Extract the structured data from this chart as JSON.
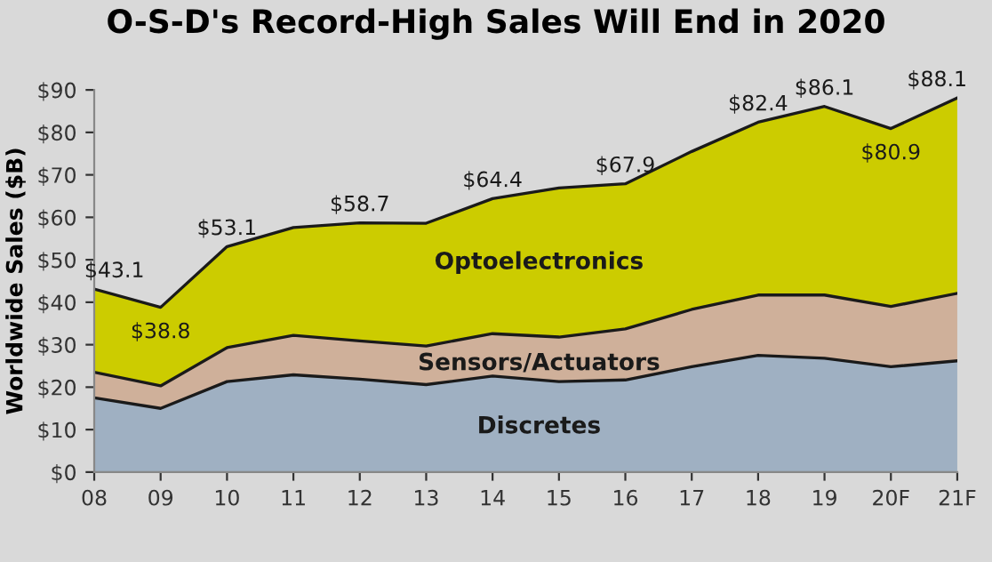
{
  "chart_data": {
    "type": "area",
    "stacked": true,
    "title": "O-S-D's Record-High Sales Will End in 2020",
    "ylabel": "Worldwide Sales ($B)",
    "categories": [
      "08",
      "09",
      "10",
      "11",
      "12",
      "13",
      "14",
      "15",
      "16",
      "17",
      "18",
      "19",
      "20F",
      "21F"
    ],
    "series": [
      {
        "name": "Discretes",
        "color": "#9fb0c2",
        "values": [
          17.5,
          15.0,
          21.3,
          22.9,
          21.9,
          20.6,
          22.6,
          21.3,
          21.7,
          24.8,
          27.5,
          26.8,
          24.8,
          26.2
        ]
      },
      {
        "name": "Sensors/Actuators",
        "color": "#cfb09a",
        "values": [
          6.0,
          5.3,
          8.0,
          9.3,
          9.0,
          9.1,
          10.0,
          10.5,
          12.0,
          13.5,
          14.2,
          14.9,
          14.2,
          15.9
        ]
      },
      {
        "name": "Optoelectronics",
        "color": "#cccc00",
        "values": [
          19.6,
          18.5,
          23.8,
          25.4,
          27.8,
          28.9,
          31.8,
          35.1,
          34.2,
          37.2,
          40.7,
          44.4,
          41.9,
          46.0
        ]
      }
    ],
    "totals": [
      "$43.1",
      "$38.8",
      "$53.1",
      null,
      "$58.7",
      null,
      "$64.4",
      null,
      "$67.9",
      null,
      "$82.4",
      "$86.1",
      "$80.9",
      "$88.1"
    ],
    "ylim": [
      0,
      90
    ],
    "yticks": [
      {
        "value": 0,
        "label": "$0"
      },
      {
        "value": 10,
        "label": "$10"
      },
      {
        "value": 20,
        "label": "$20"
      },
      {
        "value": 30,
        "label": "$30"
      },
      {
        "value": 40,
        "label": "$40"
      },
      {
        "value": 50,
        "label": "$50"
      },
      {
        "value": 60,
        "label": "$60"
      },
      {
        "value": 70,
        "label": "$70"
      },
      {
        "value": 80,
        "label": "$80"
      },
      {
        "value": 90,
        "label": "$90"
      }
    ],
    "grid": false,
    "legend": false
  }
}
